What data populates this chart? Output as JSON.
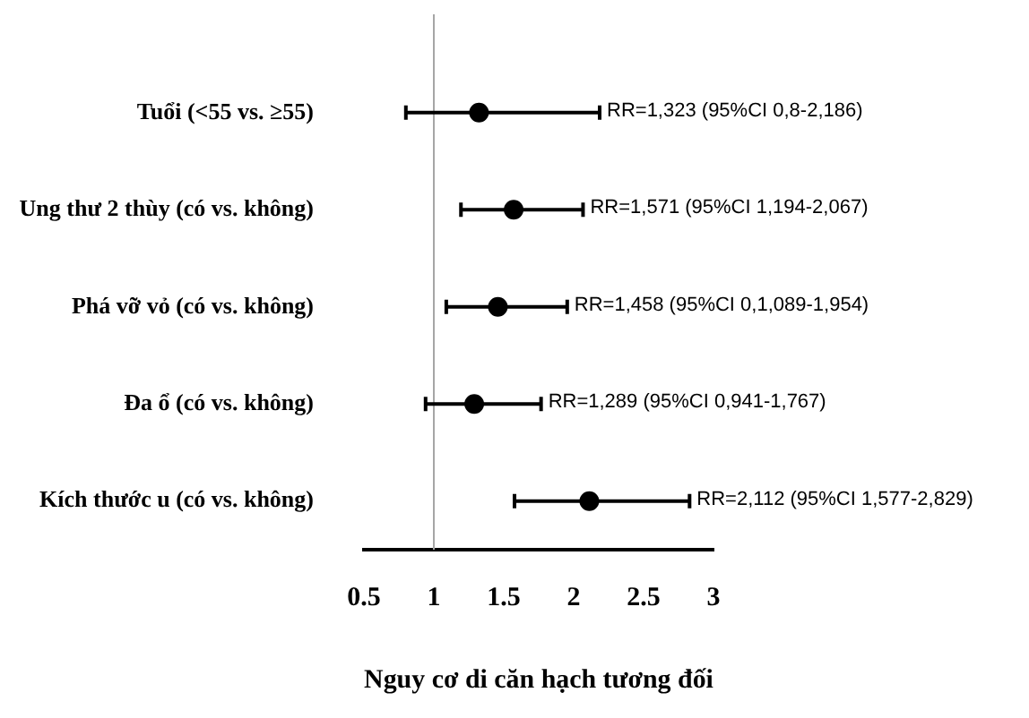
{
  "chart_data": {
    "type": "scatter",
    "orientation": "horizontal",
    "xlabel": "Nguy cơ di căn hạch tương đối",
    "categories": [
      "Tuổi (<55 vs. ≥55)",
      "Ung thư 2 thùy (có vs. không)",
      "Phá vỡ vỏ (có vs. không)",
      "Đa ổ (có vs. không)",
      "Kích thước u (có vs. không)"
    ],
    "values": [
      1.323,
      1.571,
      1.458,
      1.289,
      2.112
    ],
    "errors": [
      [
        0.8,
        2.186
      ],
      [
        1.194,
        2.067
      ],
      [
        1.089,
        1.954
      ],
      [
        0.941,
        1.767
      ],
      [
        1.577,
        2.829
      ]
    ],
    "color": "#000000",
    "marker": "circle",
    "xlim": [
      0.5,
      3
    ],
    "xticks": [
      0.5,
      1,
      1.5,
      2,
      2.5,
      3
    ],
    "ref_lines": [
      {
        "axis": "x",
        "value": 1,
        "color": "#a6a6a6"
      }
    ],
    "annotations": [
      {
        "text": "RR=1,323 (95%CI 0,8-2,186)",
        "x": 2.186,
        "y": "Tuổi (<55 vs. ≥55)"
      },
      {
        "text": "RR=1,571 (95%CI 1,194-2,067)",
        "x": 2.067,
        "y": "Ung thư 2 thùy (có vs. không)"
      },
      {
        "text": "RR=1,458 (95%CI 0,1,089-1,954)",
        "x": 1.954,
        "y": "Phá vỡ vỏ (có vs. không)"
      },
      {
        "text": "RR=1,289 (95%CI 0,941-1,767)",
        "x": 1.767,
        "y": "Đa ổ (có vs. không)"
      },
      {
        "text": "RR=2,112 (95%CI 1,577-2,829)",
        "x": 2.829,
        "y": "Kích thước u (có vs. không)"
      }
    ],
    "grid": false,
    "legend": false
  }
}
